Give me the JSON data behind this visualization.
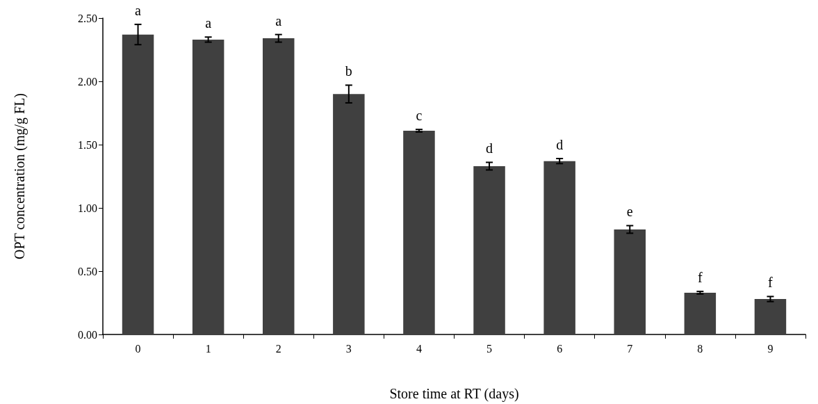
{
  "chart_data": {
    "type": "bar",
    "xlabel": "Store time at RT (days)",
    "ylabel": "OPT concentration (mg/g FL)",
    "categories": [
      "0",
      "1",
      "2",
      "3",
      "4",
      "5",
      "6",
      "7",
      "8",
      "9"
    ],
    "series": [
      {
        "color": "#404040",
        "values": [
          2.37,
          2.33,
          2.34,
          1.9,
          1.61,
          1.33,
          1.37,
          0.83,
          0.33,
          0.28
        ],
        "errors": [
          0.08,
          0.02,
          0.03,
          0.07,
          0.01,
          0.03,
          0.02,
          0.03,
          0.01,
          0.02
        ]
      }
    ],
    "ylim": [
      0,
      2.5
    ],
    "yticks": [
      {
        "value": 0,
        "label": "0.00"
      },
      {
        "value": 0.5,
        "label": "0.50"
      },
      {
        "value": 1,
        "label": "1.00"
      },
      {
        "value": 1.5,
        "label": "1.50"
      },
      {
        "value": 2,
        "label": "2.00"
      },
      {
        "value": 2.5,
        "label": "2.50"
      }
    ],
    "grid": false,
    "annotations": [
      {
        "text": "a",
        "x": "0",
        "y": 2.45
      },
      {
        "text": "a",
        "x": "1",
        "y": 2.35
      },
      {
        "text": "a",
        "x": "2",
        "y": 2.37
      },
      {
        "text": "b",
        "x": "3",
        "y": 1.97
      },
      {
        "text": "c",
        "x": "4",
        "y": 1.62
      },
      {
        "text": "d",
        "x": "5",
        "y": 1.36
      },
      {
        "text": "d",
        "x": "6",
        "y": 1.39
      },
      {
        "text": "e",
        "x": "7",
        "y": 0.86
      },
      {
        "text": "f",
        "x": "8",
        "y": 0.34
      },
      {
        "text": "f",
        "x": "9",
        "y": 0.3
      }
    ]
  }
}
